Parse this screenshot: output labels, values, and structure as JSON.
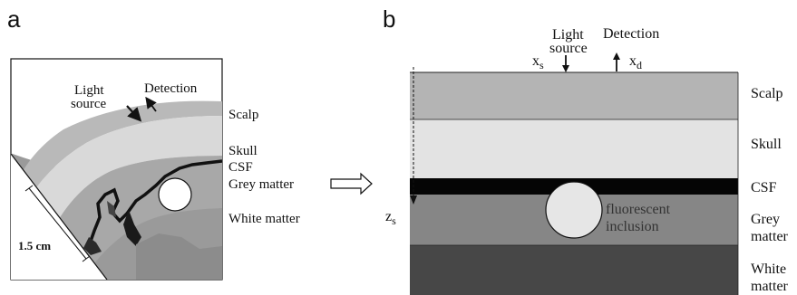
{
  "panel_a": {
    "letter": "a",
    "light_source": [
      "Light",
      "source"
    ],
    "detection": "Detection",
    "layers": [
      "Scalp",
      "Skull",
      "CSF",
      "Grey matter",
      "White matter"
    ],
    "scale": "1.5 cm"
  },
  "panel_b": {
    "letter": "b",
    "light_source": [
      "Light",
      "source"
    ],
    "detection": "Detection",
    "xs": "x",
    "xs_sub": "s",
    "xd": "x",
    "xd_sub": "d",
    "zs": "z",
    "zs_sub": "s",
    "inclusion": [
      "fluorescent",
      "inclusion"
    ],
    "layers": [
      {
        "label": [
          "Scalp"
        ],
        "color": "#b4b4b4"
      },
      {
        "label": [
          "Skull"
        ],
        "color": "#e3e3e3"
      },
      {
        "label": [
          "CSF"
        ],
        "color": "#050505"
      },
      {
        "label": [
          "Grey",
          "matter"
        ],
        "color": "#868686"
      },
      {
        "label": [
          "White",
          "matter"
        ],
        "color": "#474747"
      }
    ]
  },
  "colors": {
    "scalp": "#b4b4b4",
    "skull": "#e3e3e3",
    "csf": "#050505",
    "grey": "#868686",
    "white": "#474747",
    "inclusion": "#e6e6e6"
  }
}
